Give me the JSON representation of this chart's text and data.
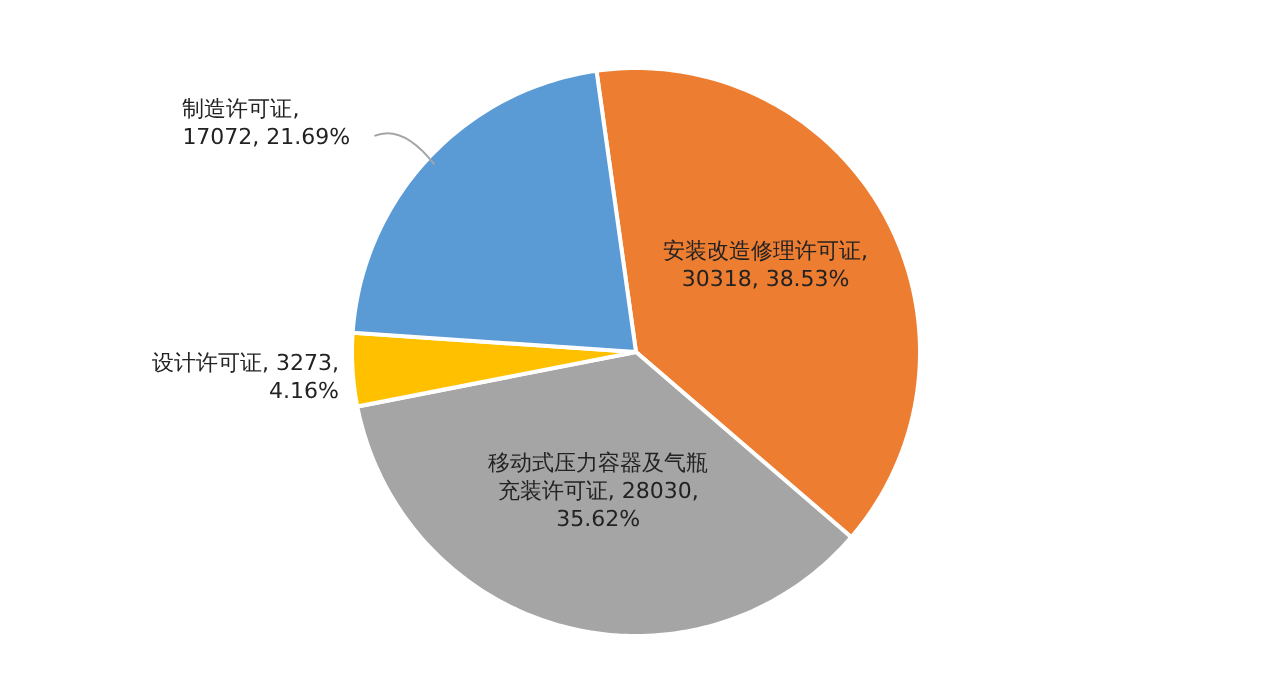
{
  "chart_data": {
    "type": "pie",
    "categories": [
      "安装改造修理许可证",
      "移动式压力容器及气瓶充装许可证",
      "设计许可证",
      "制造许可证"
    ],
    "values": [
      30318,
      28030,
      3273,
      17072
    ],
    "value_labels": [
      ", 30318, 38.53%",
      ", 28030, 35.62%",
      ", 3273, 4.16%",
      ", 17072, 21.69%"
    ],
    "colors": [
      "#ed7d31",
      "#a5a5a5",
      "#ffc000",
      "#5b9bd5"
    ]
  }
}
